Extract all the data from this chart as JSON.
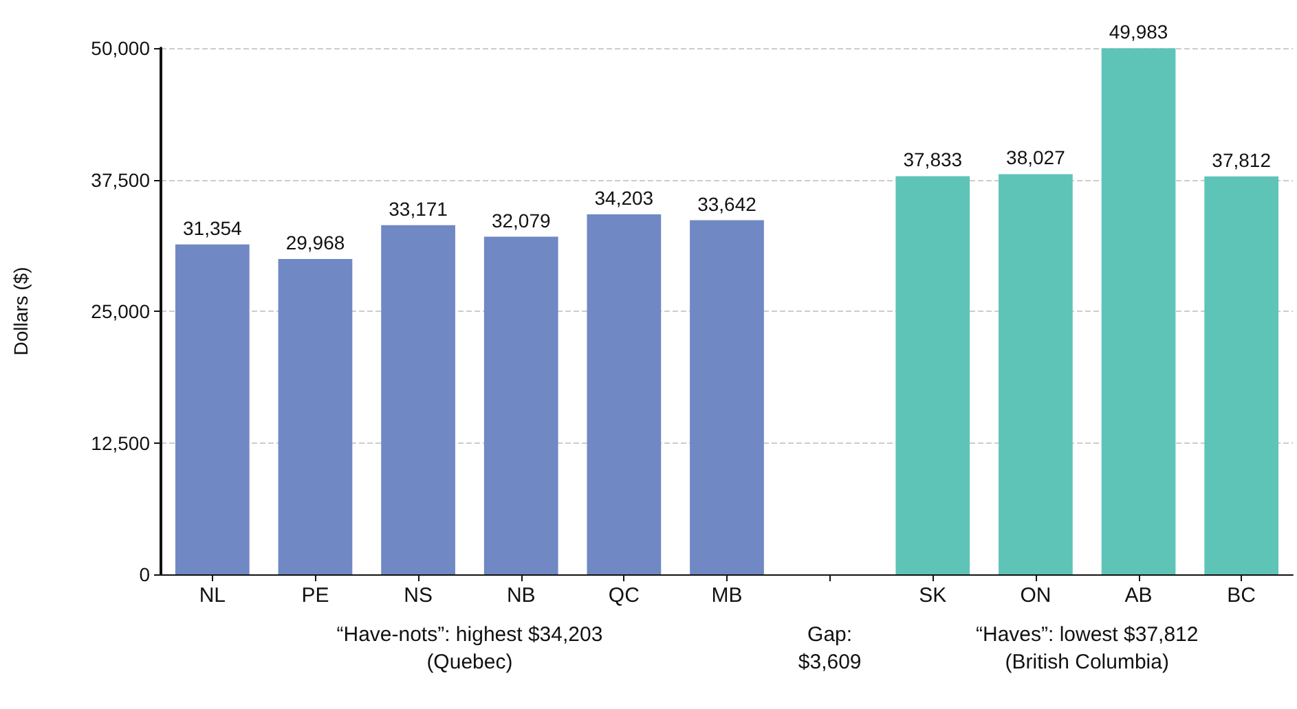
{
  "chart_data": {
    "type": "bar",
    "ylabel": "Dollars ($)",
    "categories": [
      "NL",
      "PE",
      "NS",
      "NB",
      "QC",
      "MB",
      null,
      "SK",
      "ON",
      "AB",
      "BC"
    ],
    "values": [
      31354,
      29968,
      33171,
      32079,
      34203,
      33642,
      null,
      37833,
      38027,
      49983,
      37812
    ],
    "value_labels": [
      "31,354",
      "29,968",
      "33,171",
      "32,079",
      "34,203",
      "33,642",
      null,
      "37,833",
      "38,027",
      "49,983",
      "37,812"
    ],
    "colors": [
      "#7088c4",
      "#7088c4",
      "#7088c4",
      "#7088c4",
      "#7088c4",
      "#7088c4",
      null,
      "#5fc4b8",
      "#5fc4b8",
      "#5fc4b8",
      "#5fc4b8"
    ],
    "ylim": [
      0,
      50000
    ],
    "yticks": [
      0,
      {
        "value": 12500,
        "label": "12,500"
      },
      {
        "value": 25000,
        "label": "25,000"
      },
      {
        "value": 37500,
        "label": "37,500"
      },
      {
        "value": 50000,
        "label": "50,000"
      }
    ],
    "grid": "y",
    "annotations": [
      "“Have-nots”: highest $34,203\n(Quebec)",
      "Gap:\n$3,609",
      "“Haves”: lowest $37,812\n(British Columbia)"
    ]
  }
}
